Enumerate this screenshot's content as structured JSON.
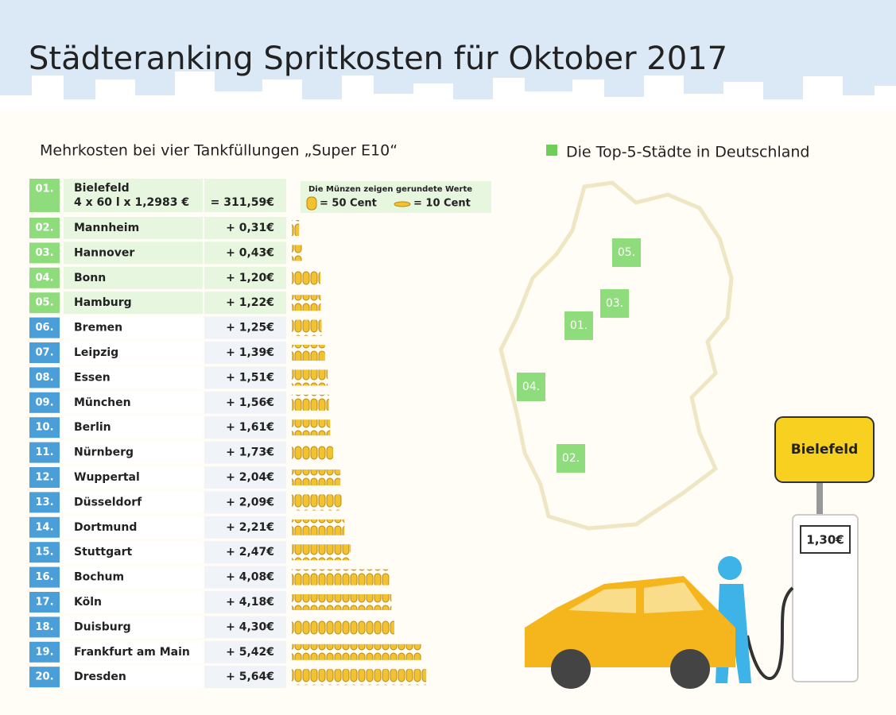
{
  "title": "Städteranking Spritkosten für Oktober 2017",
  "subtitle": "Mehrkosten bei vier Tankfüllungen „Super E10“",
  "map_legend": "Die Top-5-Städte in Deutschland",
  "coin_legend": {
    "note": "Die Münzen zeigen gerundete Werte",
    "big": "= 50 Cent",
    "small": "= 10 Cent"
  },
  "leader": {
    "rank": "01.",
    "city": "Bielefeld",
    "formula": "4 x 60 l x 1,2983 €",
    "total": "= 311,59€"
  },
  "rows": [
    {
      "rank": "02.",
      "city": "Mannheim",
      "extra": 0.31,
      "label": "+ 0,31€"
    },
    {
      "rank": "03.",
      "city": "Hannover",
      "extra": 0.43,
      "label": "+ 0,43€"
    },
    {
      "rank": "04.",
      "city": "Bonn",
      "extra": 1.2,
      "label": "+ 1,20€"
    },
    {
      "rank": "05.",
      "city": "Hamburg",
      "extra": 1.22,
      "label": "+ 1,22€"
    },
    {
      "rank": "06.",
      "city": "Bremen",
      "extra": 1.25,
      "label": "+ 1,25€"
    },
    {
      "rank": "07.",
      "city": "Leipzig",
      "extra": 1.39,
      "label": "+ 1,39€"
    },
    {
      "rank": "08.",
      "city": "Essen",
      "extra": 1.51,
      "label": "+ 1,51€"
    },
    {
      "rank": "09.",
      "city": "München",
      "extra": 1.56,
      "label": "+ 1,56€"
    },
    {
      "rank": "10.",
      "city": "Berlin",
      "extra": 1.61,
      "label": "+ 1,61€"
    },
    {
      "rank": "11.",
      "city": "Nürnberg",
      "extra": 1.73,
      "label": "+ 1,73€"
    },
    {
      "rank": "12.",
      "city": "Wuppertal",
      "extra": 2.04,
      "label": "+ 2,04€"
    },
    {
      "rank": "13.",
      "city": "Düsseldorf",
      "extra": 2.09,
      "label": "+ 2,09€"
    },
    {
      "rank": "14.",
      "city": "Dortmund",
      "extra": 2.21,
      "label": "+ 2,21€"
    },
    {
      "rank": "15.",
      "city": "Stuttgart",
      "extra": 2.47,
      "label": "+ 2,47€"
    },
    {
      "rank": "16.",
      "city": "Bochum",
      "extra": 4.08,
      "label": "+ 4,08€"
    },
    {
      "rank": "17.",
      "city": "Köln",
      "extra": 4.18,
      "label": "+ 4,18€"
    },
    {
      "rank": "18.",
      "city": "Duisburg",
      "extra": 4.3,
      "label": "+ 4,30€"
    },
    {
      "rank": "19.",
      "city": "Frankfurt am Main",
      "extra": 5.42,
      "label": "+ 5,42€"
    },
    {
      "rank": "20.",
      "city": "Dresden",
      "extra": 5.64,
      "label": "+ 5,64€"
    }
  ],
  "map_markers": [
    "01.",
    "02.",
    "03.",
    "04.",
    "05."
  ],
  "sign": "Bielefeld",
  "price": "1,30€"
}
